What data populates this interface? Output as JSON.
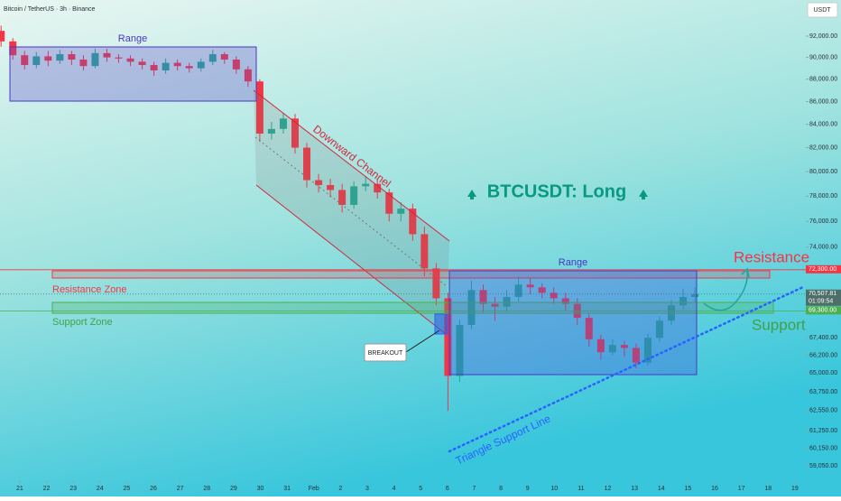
{
  "header": {
    "symbol": "Bitcoin / TetherUS · 3h · Binance",
    "currency": "USDT"
  },
  "chart_data": {
    "type": "candlestick",
    "log_scale": true,
    "up_color": "#22ab94",
    "down_color": "#f23645",
    "xlim": [
      -0.74,
      29.41
    ],
    "ylim": [
      58300,
      95490
    ],
    "xticks": [
      {
        "value": 0,
        "label": "21"
      },
      {
        "value": 1,
        "label": "22"
      },
      {
        "value": 2,
        "label": "23"
      },
      {
        "value": 3,
        "label": "24"
      },
      {
        "value": 4,
        "label": "25"
      },
      {
        "value": 5,
        "label": "26"
      },
      {
        "value": 6,
        "label": "27"
      },
      {
        "value": 7,
        "label": "28"
      },
      {
        "value": 8,
        "label": "29"
      },
      {
        "value": 9,
        "label": "30"
      },
      {
        "value": 10,
        "label": "31"
      },
      {
        "value": 11,
        "label": "Feb"
      },
      {
        "value": 12,
        "label": "2"
      },
      {
        "value": 13,
        "label": "3"
      },
      {
        "value": 14,
        "label": "4"
      },
      {
        "value": 15,
        "label": "5"
      },
      {
        "value": 16,
        "label": "6"
      },
      {
        "value": 17,
        "label": "7"
      },
      {
        "value": 18,
        "label": "8"
      },
      {
        "value": 19,
        "label": "9"
      },
      {
        "value": 20,
        "label": "10"
      },
      {
        "value": 21,
        "label": "11"
      },
      {
        "value": 22,
        "label": "12"
      },
      {
        "value": 23,
        "label": "13"
      },
      {
        "value": 24,
        "label": "14"
      },
      {
        "value": 25,
        "label": "15"
      },
      {
        "value": 26,
        "label": "16"
      },
      {
        "value": 27,
        "label": "17"
      },
      {
        "value": 28,
        "label": "18"
      },
      {
        "value": 29,
        "label": "19"
      }
    ],
    "yticks": [
      {
        "value": 92000,
        "label": "92,000.00"
      },
      {
        "value": 90000,
        "label": "90,000.00"
      },
      {
        "value": 88000,
        "label": "88,000.00"
      },
      {
        "value": 86000,
        "label": "86,000.00"
      },
      {
        "value": 84000,
        "label": "84,000.00"
      },
      {
        "value": 82000,
        "label": "82,000.00"
      },
      {
        "value": 80000,
        "label": "80,000.00"
      },
      {
        "value": 78000,
        "label": "78,000.00"
      },
      {
        "value": 76000,
        "label": "76,000.00"
      },
      {
        "value": 74000,
        "label": "74,000.00"
      },
      {
        "value": 67400,
        "label": "67,400.00"
      },
      {
        "value": 66200,
        "label": "66,200.00"
      },
      {
        "value": 65000,
        "label": "65,000.00"
      },
      {
        "value": 63750,
        "label": "63,750.00"
      },
      {
        "value": 62550,
        "label": "62,550.00"
      },
      {
        "value": 61250,
        "label": "61,250.00"
      },
      {
        "value": 60150,
        "label": "60,150.00"
      },
      {
        "value": 59050,
        "label": "59,050.00"
      }
    ],
    "price_labels": [
      {
        "value": 72300,
        "label": "72,300.00",
        "color": "#f23645"
      },
      {
        "value": 70507.81,
        "label": "70,507.81",
        "countdown": "01:09:54",
        "color": "#4e6e6a"
      },
      {
        "value": 69300,
        "label": "69,300.00",
        "color": "#4caf50"
      }
    ],
    "candles": {
      "x": [
        -0.7,
        -0.26,
        0.18,
        0.62,
        1.06,
        1.5,
        1.94,
        2.38,
        2.82,
        3.26,
        3.7,
        4.14,
        4.58,
        5.02,
        5.46,
        5.9,
        6.34,
        6.78,
        7.22,
        7.66,
        8.1,
        8.54,
        8.98,
        9.42,
        9.86,
        10.3,
        10.74,
        11.18,
        11.62,
        12.06,
        12.5,
        12.94,
        13.38,
        13.82,
        14.26,
        14.7,
        15.14,
        15.58,
        16.02,
        16.46,
        16.9,
        17.34,
        17.78,
        18.22,
        18.66,
        19.1,
        19.54,
        19.98,
        20.42,
        20.86,
        21.3,
        21.74,
        22.18,
        22.62,
        23.06,
        23.5,
        23.94,
        24.38,
        24.82,
        25.26
      ],
      "open": [
        92500,
        91500,
        90200,
        89300,
        90100,
        89700,
        90300,
        89800,
        89200,
        90400,
        90000,
        89900,
        89600,
        89300,
        88800,
        89500,
        89200,
        89000,
        89600,
        90300,
        89800,
        88900,
        87800,
        83200,
        83600,
        84500,
        82000,
        79300,
        78900,
        78500,
        77300,
        78800,
        79000,
        78300,
        76600,
        77000,
        75000,
        72400,
        70200,
        64800,
        68300,
        70800,
        69800,
        69600,
        70300,
        71200,
        71000,
        70600,
        70200,
        69800,
        68800,
        67300,
        66400,
        66900,
        66700,
        65700,
        67400,
        68600,
        69700,
        70300
      ],
      "high": [
        93000,
        91800,
        90600,
        90500,
        90600,
        90700,
        90600,
        90200,
        90800,
        90800,
        90300,
        90200,
        89900,
        89600,
        89900,
        89800,
        89500,
        89900,
        90700,
        90500,
        90100,
        89200,
        88000,
        84200,
        85000,
        84900,
        82400,
        79800,
        79400,
        79000,
        79200,
        79600,
        79400,
        78600,
        77500,
        77400,
        75600,
        72800,
        70600,
        68700,
        71500,
        71200,
        70300,
        70800,
        71800,
        71700,
        71300,
        71000,
        70600,
        70200,
        69100,
        67600,
        67300,
        67200,
        67000,
        67700,
        68900,
        70100,
        70900,
        71000
      ],
      "low": [
        91000,
        89800,
        88900,
        89000,
        89200,
        89400,
        89300,
        88800,
        89000,
        89600,
        89500,
        89200,
        88900,
        88300,
        88500,
        88800,
        88600,
        88700,
        89300,
        89400,
        88500,
        87300,
        82500,
        82700,
        83200,
        81500,
        78700,
        78300,
        77900,
        76700,
        77000,
        78400,
        77800,
        76000,
        76000,
        74500,
        71800,
        69700,
        62500,
        64400,
        68000,
        69200,
        68600,
        69200,
        70000,
        70500,
        70200,
        69800,
        69300,
        68300,
        66800,
        65900,
        66200,
        66100,
        65300,
        65500,
        67100,
        68300,
        69400,
        69900
      ],
      "close": [
        91500,
        90200,
        89300,
        90100,
        89700,
        90300,
        89800,
        89200,
        90400,
        90000,
        89900,
        89600,
        89300,
        88800,
        89500,
        89200,
        89000,
        89600,
        90300,
        89800,
        88900,
        87800,
        83200,
        83600,
        84500,
        82000,
        79300,
        78900,
        78500,
        77300,
        78800,
        79000,
        78300,
        76600,
        77000,
        75000,
        72400,
        70200,
        64800,
        68300,
        70800,
        69800,
        69600,
        70300,
        71200,
        71000,
        70600,
        70200,
        69800,
        68800,
        67300,
        66400,
        66900,
        66700,
        65700,
        67400,
        68600,
        69700,
        70300,
        70500
      ]
    },
    "annotations": {
      "range_top": "Range",
      "channel": "Downward Channel",
      "title": "BTCUSDT: Long",
      "resistance_zone": "Resistance Zone",
      "support_zone": "Support Zone",
      "breakout": "BREAKOUT",
      "range_bottom": "Range",
      "resistance": "Resistance",
      "support": "Support",
      "triangle": "Triangle Support Line"
    }
  }
}
